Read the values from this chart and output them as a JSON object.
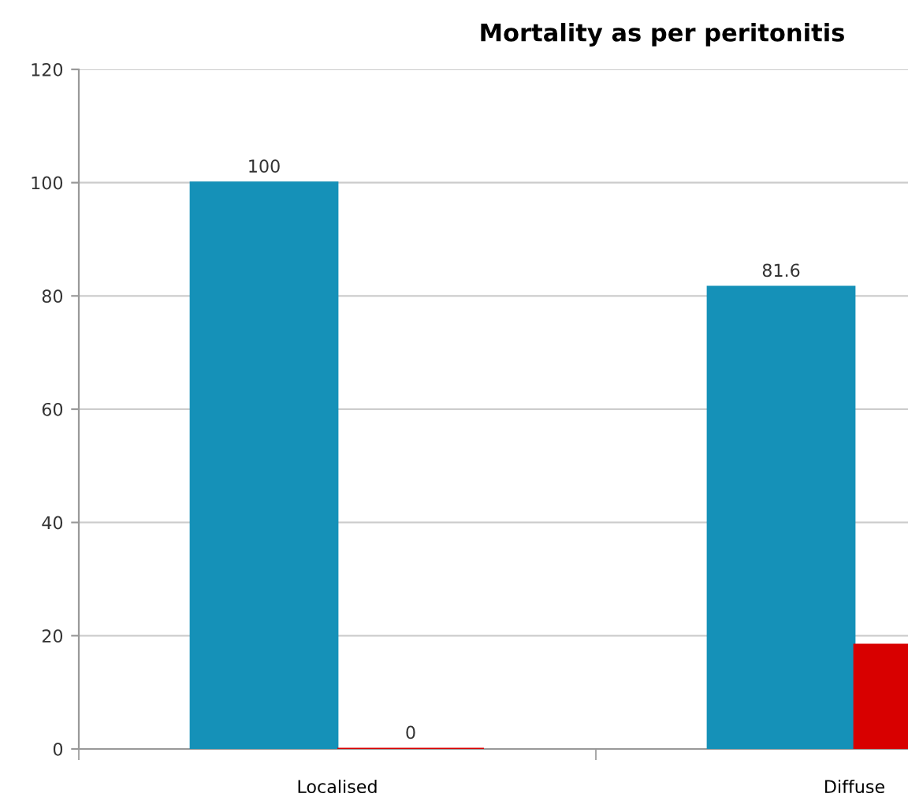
{
  "chart_data": {
    "type": "bar",
    "title": "Mortality as per peritonitis",
    "categories": [
      "Localised",
      "Diffuse"
    ],
    "series": [
      {
        "color": "#1591b8",
        "values": [
          100,
          81.6
        ],
        "value_labels": [
          "100",
          "81.6"
        ]
      },
      {
        "color": "#d80000",
        "values": [
          0,
          18.4
        ],
        "value_labels": [
          "0",
          null
        ]
      }
    ],
    "ylim": [
      0,
      120
    ],
    "yticks": [
      0,
      20,
      40,
      60,
      80,
      100,
      120
    ],
    "grid": "y"
  }
}
